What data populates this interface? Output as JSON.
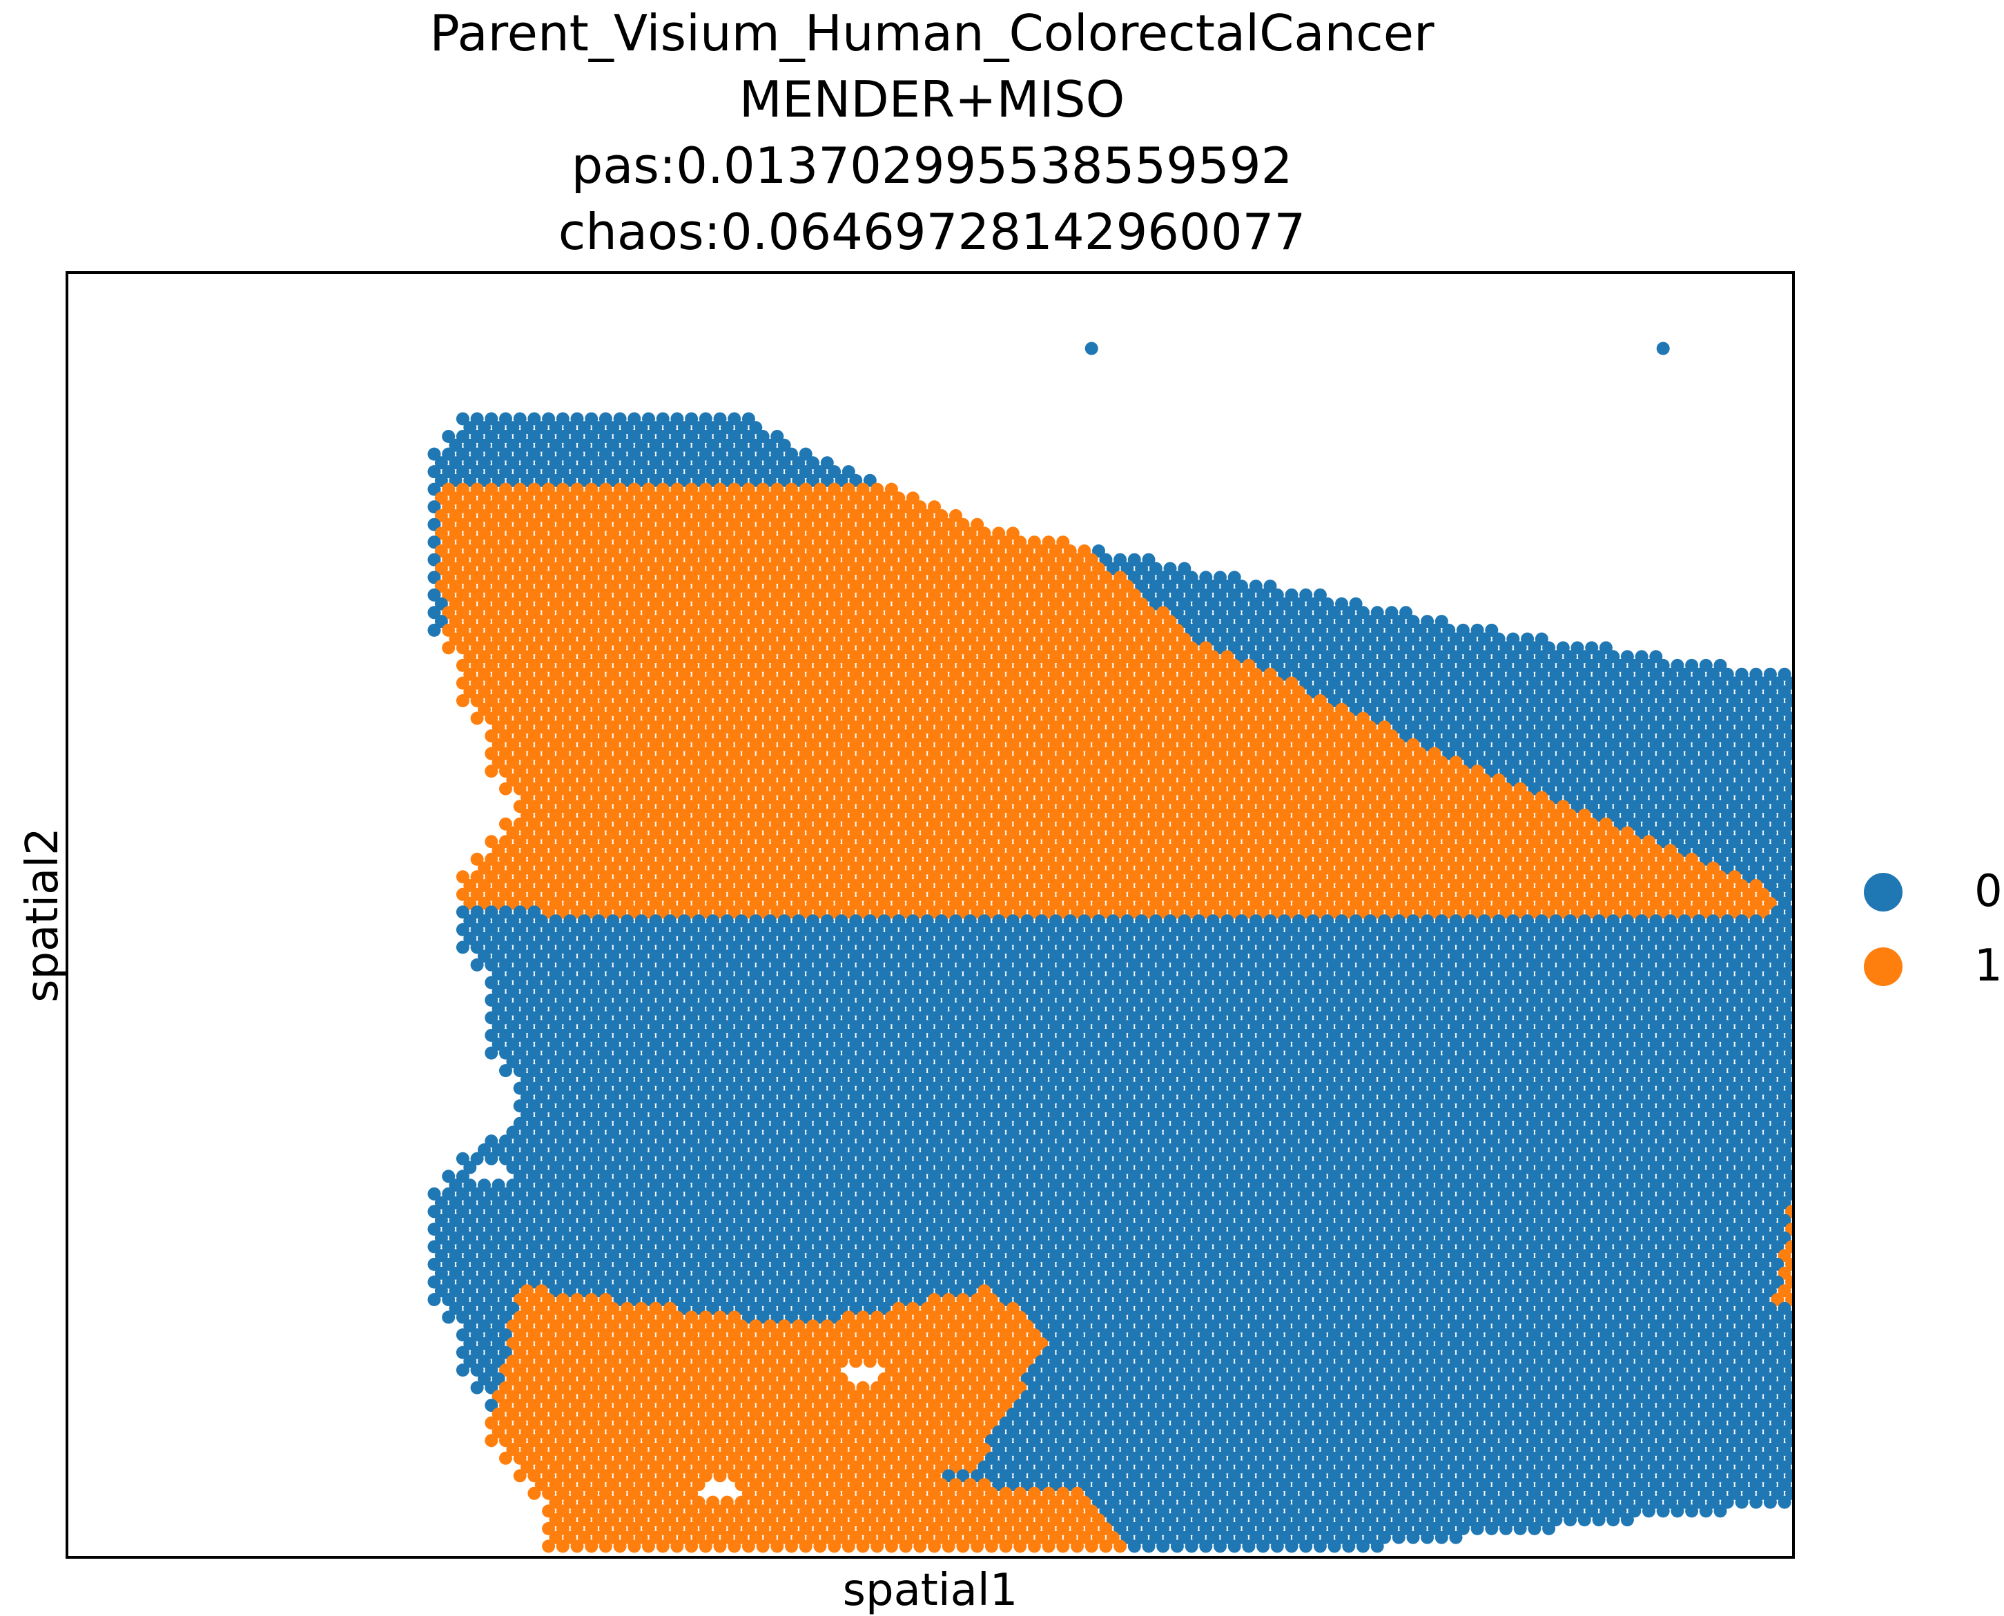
{
  "chart_data": {
    "type": "scatter",
    "title_lines": [
      "Parent_Visium_Human_ColorectalCancer",
      "MENDER+MISO",
      "pas:0.013702995538559592",
      "chaos:0.06469728142960077"
    ],
    "xlabel": "spatial1",
    "ylabel": "spatial2",
    "xticks": [],
    "yticks": [],
    "grid": false,
    "legend_position": "right",
    "colors": {
      "0": "#1f77b4",
      "1": "#ff7f0e"
    },
    "categories": [
      "0",
      "1"
    ],
    "tissue_outline_y_range": [
      0,
      89
    ],
    "regions": [
      {
        "cluster": "1",
        "polygon": [
          [
            0,
            5
          ],
          [
            40,
            5
          ],
          [
            53,
            17
          ],
          [
            74,
            28
          ],
          [
            94,
            37
          ],
          [
            94,
            41
          ],
          [
            28,
            41
          ],
          [
            2,
            38
          ]
        ]
      },
      {
        "cluster": "0",
        "polygon": [
          [
            4,
            39
          ],
          [
            96,
            39
          ],
          [
            104,
            35
          ],
          [
            130,
            43
          ],
          [
            126,
            55
          ],
          [
            128,
            58
          ],
          [
            126,
            80
          ],
          [
            2,
            80
          ],
          [
            4,
            58
          ],
          [
            10,
            51
          ]
        ]
      },
      {
        "cluster": "1",
        "polygon": [
          [
            102,
            38
          ],
          [
            118,
            37
          ],
          [
            132,
            42
          ],
          [
            137,
            50
          ],
          [
            136,
            61
          ],
          [
            112,
            70
          ],
          [
            103,
            72
          ],
          [
            94,
            69
          ],
          [
            96,
            54
          ]
        ]
      },
      {
        "cluster": "1",
        "polygon": [
          [
            6,
            68
          ],
          [
            26,
            71
          ],
          [
            39,
            68
          ],
          [
            43,
            72
          ],
          [
            38,
            82
          ],
          [
            25,
            86
          ],
          [
            15,
            86
          ],
          [
            3,
            84
          ]
        ]
      },
      {
        "cluster": "1",
        "polygon": [
          [
            -5,
            83
          ],
          [
            6,
            77
          ],
          [
            22,
            82
          ],
          [
            45,
            84
          ],
          [
            55,
            96
          ],
          [
            43,
            106
          ],
          [
            34,
            113
          ],
          [
            23,
            113
          ],
          [
            15,
            105
          ],
          [
            8,
            104
          ],
          [
            8,
            116
          ],
          [
            4,
            120
          ],
          [
            0,
            118
          ],
          [
            -3,
            104
          ],
          [
            -6,
            96
          ]
        ]
      },
      {
        "cluster": "1",
        "polygon": [
          [
            -1,
            115
          ],
          [
            4,
            113
          ],
          [
            10,
            120
          ],
          [
            3,
            128
          ],
          [
            -2,
            126
          ]
        ]
      },
      {
        "cluster": "0",
        "polygon": [
          [
            6,
            106
          ],
          [
            15,
            106
          ],
          [
            22,
            112
          ],
          [
            31,
            122
          ],
          [
            39,
            122
          ],
          [
            37,
            128
          ],
          [
            7,
            128
          ]
        ]
      },
      {
        "cluster": "1",
        "polygon": [
          [
            98,
            78
          ],
          [
            114,
            78
          ],
          [
            126,
            82
          ],
          [
            126,
            95
          ],
          [
            134,
            100
          ],
          [
            136,
            108
          ],
          [
            114,
            109
          ],
          [
            98,
            105
          ],
          [
            98,
            92
          ]
        ]
      },
      {
        "cluster": "0",
        "polygon": [
          [
            125,
            100
          ],
          [
            139,
            99
          ],
          [
            141,
            111
          ],
          [
            128,
            117
          ],
          [
            117,
            115
          ],
          [
            120,
            109
          ]
        ]
      }
    ],
    "outliers": [
      {
        "cluster": "0",
        "x": 46,
        "y": -5
      },
      {
        "cluster": "0",
        "x": 86,
        "y": -5
      }
    ],
    "holes": [
      [
        4,
        59
      ],
      [
        30,
        75
      ],
      [
        20,
        84
      ],
      [
        18,
        108
      ]
    ]
  }
}
